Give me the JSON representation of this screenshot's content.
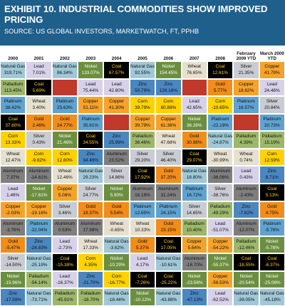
{
  "title": "EXHIBIT 10. INDUSTRIAL COMMODITIES SHOW IMPROVED PRICING",
  "subtitle": "SOURCE: US GLOBAL INVESTORS, MARKETWATCH, FT, PPHB",
  "chart_data": {
    "type": "table",
    "columns": [
      "2000",
      "2001",
      "2002",
      "2003",
      "2004",
      "2005",
      "2006",
      "2007",
      "2008",
      "February 2009 YTD",
      "March 2009 YTD"
    ],
    "table": [
      [
        [
          "Natural Gas",
          "319.71%"
        ],
        [
          "Lead",
          "7.01%"
        ],
        [
          "Natural Gas",
          "86.34%"
        ],
        [
          "Nickel",
          "133.07%"
        ],
        [
          "Coal",
          "67.57%"
        ],
        [
          "Natural Gas",
          "92.55%"
        ],
        [
          "Nickel",
          "154.45%"
        ],
        [
          "Wheat",
          "76.65%"
        ],
        [
          "Coal",
          "12.61%"
        ],
        [
          "Silver",
          "21.35%"
        ],
        [
          "Copper",
          "41.79%"
        ]
      ],
      [
        [
          "Palladium",
          "113.45%"
        ],
        [
          "Coal",
          "5.69%"
        ],
        [
          "",
          ""
        ],
        [
          "Lead",
          "75.44%"
        ],
        [
          "Lead",
          "42.80%"
        ],
        [
          "Zinc",
          "50.79%"
        ],
        [
          "Zinc",
          "126.16%"
        ],
        [
          "",
          ""
        ],
        [
          "Gold",
          "5.77%"
        ],
        [
          "Copper",
          "18.62%"
        ],
        [
          "Lead",
          "24.46%"
        ]
      ],
      [
        [
          "Platinum",
          "38.42%"
        ],
        [
          "Wheat",
          "3.40%"
        ],
        [
          "Platinum",
          "25.63%"
        ],
        [
          "Copper",
          "51.11%"
        ],
        [
          "Copper",
          "41.30%"
        ],
        [
          "Corn",
          "39.79%"
        ],
        [
          "Corn",
          "80.88%"
        ],
        [
          "Lead",
          "42.65%"
        ],
        [
          "Corn",
          "-10.65%"
        ],
        [
          "Platinum",
          "16.57%"
        ],
        [
          "Silver",
          "20.84%"
        ]
      ],
      [
        [
          "Coal",
          "37.60%"
        ],
        [
          "Gold",
          "2.46%"
        ],
        [
          "Gold",
          "24.77%"
        ],
        [
          "Platinum",
          "35.61%"
        ],
        [
          "",
          ""
        ],
        [
          "Copper",
          "39.79%"
        ],
        [
          "Copper",
          "61.36%"
        ],
        [
          "Nickel",
          "36.28%"
        ],
        [
          "Platinum",
          "-22.19%"
        ],
        [
          "",
          ""
        ],
        [
          "Platinum",
          "20.73%"
        ]
      ],
      [
        [
          "Corn",
          "13.33%"
        ],
        [
          "Silver",
          "0.43%"
        ],
        [
          "Nickel",
          "21.46%"
        ],
        [
          "Coal",
          "34.55%"
        ],
        [
          "Zinc",
          "25.99%"
        ],
        [
          "Palladium",
          "36.46%"
        ],
        [
          "Wheat",
          "47.68%"
        ],
        [
          "Gold",
          "30.98%"
        ],
        [
          "Natural Gas",
          "-24.87%"
        ],
        [
          "Palladium",
          "4.39%"
        ],
        [
          "Palladium",
          "15.19%"
        ]
      ],
      [
        [
          "Wheat",
          "12.47%"
        ],
        [
          "Corn",
          "-9.82%"
        ],
        [
          "Corn",
          "12.80%"
        ],
        [
          "Zinc",
          "34.49%"
        ],
        [
          "Aluminum",
          "23.52%"
        ],
        [
          "Silver",
          "29.20%"
        ],
        [
          "Silver",
          "46.40%"
        ],
        [
          "Coal",
          "29.07%"
        ],
        [
          "Wheat",
          "-30.99%"
        ],
        [
          "Wheat",
          "0.74%"
        ],
        [
          "Corn",
          "12.59%"
        ]
      ],
      [
        [
          "Aluminum",
          "7.37%"
        ],
        [
          "Aluminum",
          "-14.61%"
        ],
        [
          "Wheat",
          "12.46%"
        ],
        [
          "Natural Gas",
          "29.23%"
        ],
        [
          "Silver",
          "14.86%"
        ],
        [
          "Coal",
          "17.92%"
        ],
        [
          "Gold",
          "37.20%"
        ],
        [
          "Natural Gas",
          "18.80%"
        ],
        [
          "Aluminum",
          "-36.06%"
        ],
        [
          "Lead",
          "0.43%"
        ],
        [
          "Zinc",
          "8.71%"
        ]
      ],
      [
        [
          "Lead",
          "1.46%"
        ],
        [
          "Nickel",
          "-17.61%"
        ],
        [
          "Copper",
          "5.06%"
        ],
        [
          "Silver",
          "24.77%"
        ],
        [
          "Nickel",
          "5.90%"
        ],
        [
          "Aluminum",
          "16.19%"
        ],
        [
          "Aluminum",
          "31.24%"
        ],
        [
          "Platinum",
          "16.72%"
        ],
        [
          "Silver",
          "-38.76%"
        ],
        [
          "Aluminum",
          "-2.43%"
        ],
        [
          "Coal",
          "5.13%"
        ]
      ],
      [
        [
          "Copper",
          "-2.03%"
        ],
        [
          "Copper",
          "-19.16%"
        ],
        [
          "Silver",
          "3.46%"
        ],
        [
          "Gold",
          "19.37%"
        ],
        [
          "Gold",
          "5.54%"
        ],
        [
          "Platinum",
          "12.65%"
        ],
        [
          "Platinum",
          "24.15%"
        ],
        [
          "Silver",
          "14.65%"
        ],
        [
          "Palladium",
          "-49.29%"
        ],
        [
          "Zinc",
          "-7.82%"
        ],
        [
          "Gold",
          "4.75%"
        ]
      ],
      [
        [
          "Aluminum",
          "-3.76%"
        ],
        [
          "Platinum",
          "-22.04%"
        ],
        [
          "Aluminum",
          "0.53%"
        ],
        [
          "Aluminum",
          "17.98%"
        ],
        [
          "Wheat",
          "-0.65%"
        ],
        [
          "Wheat",
          "10.33%"
        ],
        [
          "Gold",
          "23.15%"
        ],
        [
          "Palladium",
          "10.40%"
        ],
        [
          "Lead",
          "-51.07%"
        ],
        [
          "Aluminum",
          "-12.07%"
        ],
        [
          "Platinum",
          "-5.78%"
        ]
      ],
      [
        [
          "Gold",
          "-5.47%"
        ],
        [
          "Zinc",
          "-24.83%"
        ],
        [
          "Lead",
          "-2.73%"
        ],
        [
          "Wheat",
          "17.33%"
        ],
        [
          "Natural Gas",
          "-3.62%"
        ],
        [
          "Gold",
          "5.37%"
        ],
        [
          "Coal",
          "17.05%"
        ],
        [
          "Copper",
          "5.64%"
        ],
        [
          "Copper",
          "-54.22%"
        ],
        [
          "Palladium",
          "-12.46%"
        ],
        [
          "Nickel",
          "-5.78%"
        ]
      ],
      [
        [
          "Silver",
          "-14.50%"
        ],
        [
          "Natural Gas",
          "-25.19%"
        ],
        [
          "Coal",
          "-15.38%"
        ],
        [
          "Corn",
          "4.35%"
        ],
        [
          "Nickel",
          "-10.29%"
        ],
        [
          "Lead",
          "4.17%"
        ],
        [
          "Natural Gas",
          "-10.61%"
        ],
        [
          "Aluminum",
          "-16.70%"
        ],
        [
          "Nickel",
          "-55.37%"
        ],
        [
          "Coal",
          "-18.55%"
        ],
        [
          "Coal",
          "-6.37%"
        ]
      ],
      [
        [
          "Nickel",
          "-15.96%"
        ],
        [
          "Palladium",
          "-54.14%"
        ],
        [
          "Lead",
          "-16.37%"
        ],
        [
          "Zinc",
          "-21.70%"
        ],
        [
          "Corn",
          "-16.77%"
        ],
        [
          "Coal",
          "-7.26%"
        ],
        [
          "Coal",
          "-25.22%"
        ],
        [
          "Nickel",
          "-23.56%"
        ],
        [
          "Copper",
          "-56.53%"
        ],
        [
          "Nickel",
          "-20.54%"
        ],
        [
          "Nickel",
          "-25.08%"
        ]
      ],
      [
        [
          "Zinc",
          "-17.59%"
        ],
        [
          "Natural Gas",
          "-73.71%"
        ],
        [
          "Palladium",
          "-45.91%"
        ],
        [
          "Palladium",
          "-18.70%"
        ],
        [
          "Natural Gas",
          "-18.44%"
        ],
        [
          "Nickel",
          "-10.12%"
        ],
        [
          "Natural Gas",
          "-43.88%"
        ],
        [
          "Zinc",
          "-47.13%"
        ],
        [
          "Lead",
          "-62.52%"
        ],
        [
          "Natural Gas",
          "-39.05%"
        ],
        [
          "Natural Gas",
          "-45.18%"
        ]
      ]
    ]
  },
  "colors": {
    "header_bg": "#1f5f8b",
    "Natural Gas": "#9fc8d8",
    "Palladium": "#9db86a",
    "Platinum": "#5fa3d1",
    "Coal": "#000000",
    "Corn": "#ffd200",
    "Wheat": "#e6e0cf",
    "Aluminum": "#7f7f7f",
    "Lead": "#d7d2ea",
    "Copper": "#f5a32a",
    "Gold": "#f28c1a",
    "Silver": "#c9ccd2",
    "Nickel": "#6b8e3f",
    "Zinc": "#4a86c0",
    "Empty": "#c0392b"
  }
}
